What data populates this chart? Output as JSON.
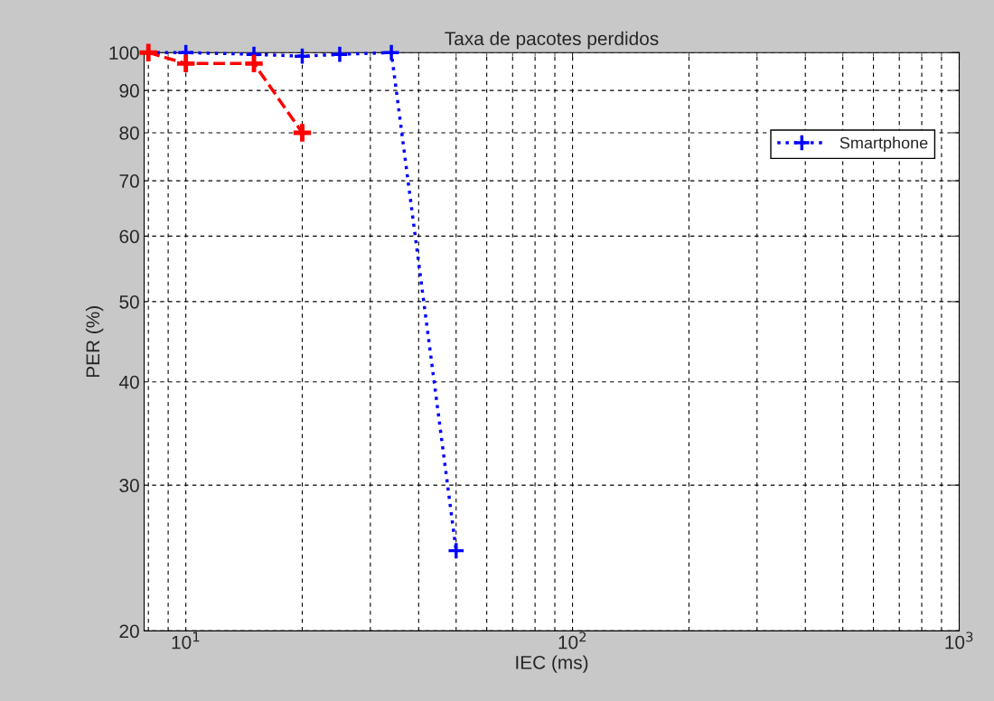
{
  "chart_data": {
    "type": "line",
    "title": "Taxa de pacotes perdidos",
    "xlabel": "IEC (ms)",
    "ylabel": "PER (%)",
    "log": "xy",
    "grid": true,
    "legend": "top right",
    "marker": "cross",
    "xlim": [
      7.8,
      1000
    ],
    "xticks": [
      {
        "value": 10,
        "label": "10$^{1}$"
      },
      {
        "value": 100,
        "label": "10$^{2}$"
      },
      {
        "value": 1000,
        "label": "10$^{3}$"
      }
    ],
    "ylim": [
      20,
      100
    ],
    "yticks": [
      20,
      30,
      40,
      50,
      60,
      70,
      80,
      90,
      100
    ],
    "series": [
      {
        "color": "#ff0000",
        "line_style": "dashed",
        "x": [
          8,
          10,
          15,
          20
        ],
        "values": [
          100,
          97,
          97,
          80
        ]
      },
      {
        "name": "Smartphone",
        "color": "#0000ff",
        "line_style": "dotted",
        "x": [
          8,
          10,
          15,
          20,
          25,
          34,
          50
        ],
        "values": [
          100,
          100,
          99.5,
          99,
          99.5,
          100,
          25
        ]
      }
    ]
  }
}
